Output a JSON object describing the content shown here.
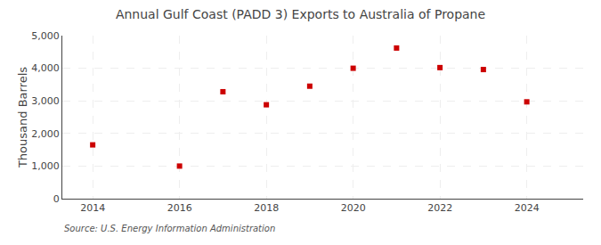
{
  "chart_data": {
    "type": "scatter",
    "title": "Annual Gulf Coast (PADD 3) Exports to Australia of Propane",
    "ylabel": "Thousand Barrels",
    "annotations": [
      "Source: U.S. Energy Information Administration"
    ],
    "x": [
      2014,
      2016,
      2017,
      2018,
      2019,
      2020,
      2021,
      2022,
      2023,
      2024
    ],
    "values": [
      1650,
      1000,
      3280,
      2880,
      3450,
      4000,
      4620,
      4020,
      3960,
      2970
    ],
    "color": "#cc0000",
    "marker": "square",
    "xlim": [
      2013.3,
      2025.3
    ],
    "xticks": [
      2014,
      2016,
      2018,
      2020,
      2022,
      2024
    ],
    "ylim": [
      0,
      5000
    ],
    "yticks": [
      0,
      {
        "value": 1000,
        "label": "1,000"
      },
      {
        "value": 2000,
        "label": "2,000"
      },
      {
        "value": 3000,
        "label": "3,000"
      },
      {
        "value": 4000,
        "label": "4,000"
      },
      {
        "value": 5000,
        "label": "5,000"
      }
    ],
    "grid": true
  }
}
